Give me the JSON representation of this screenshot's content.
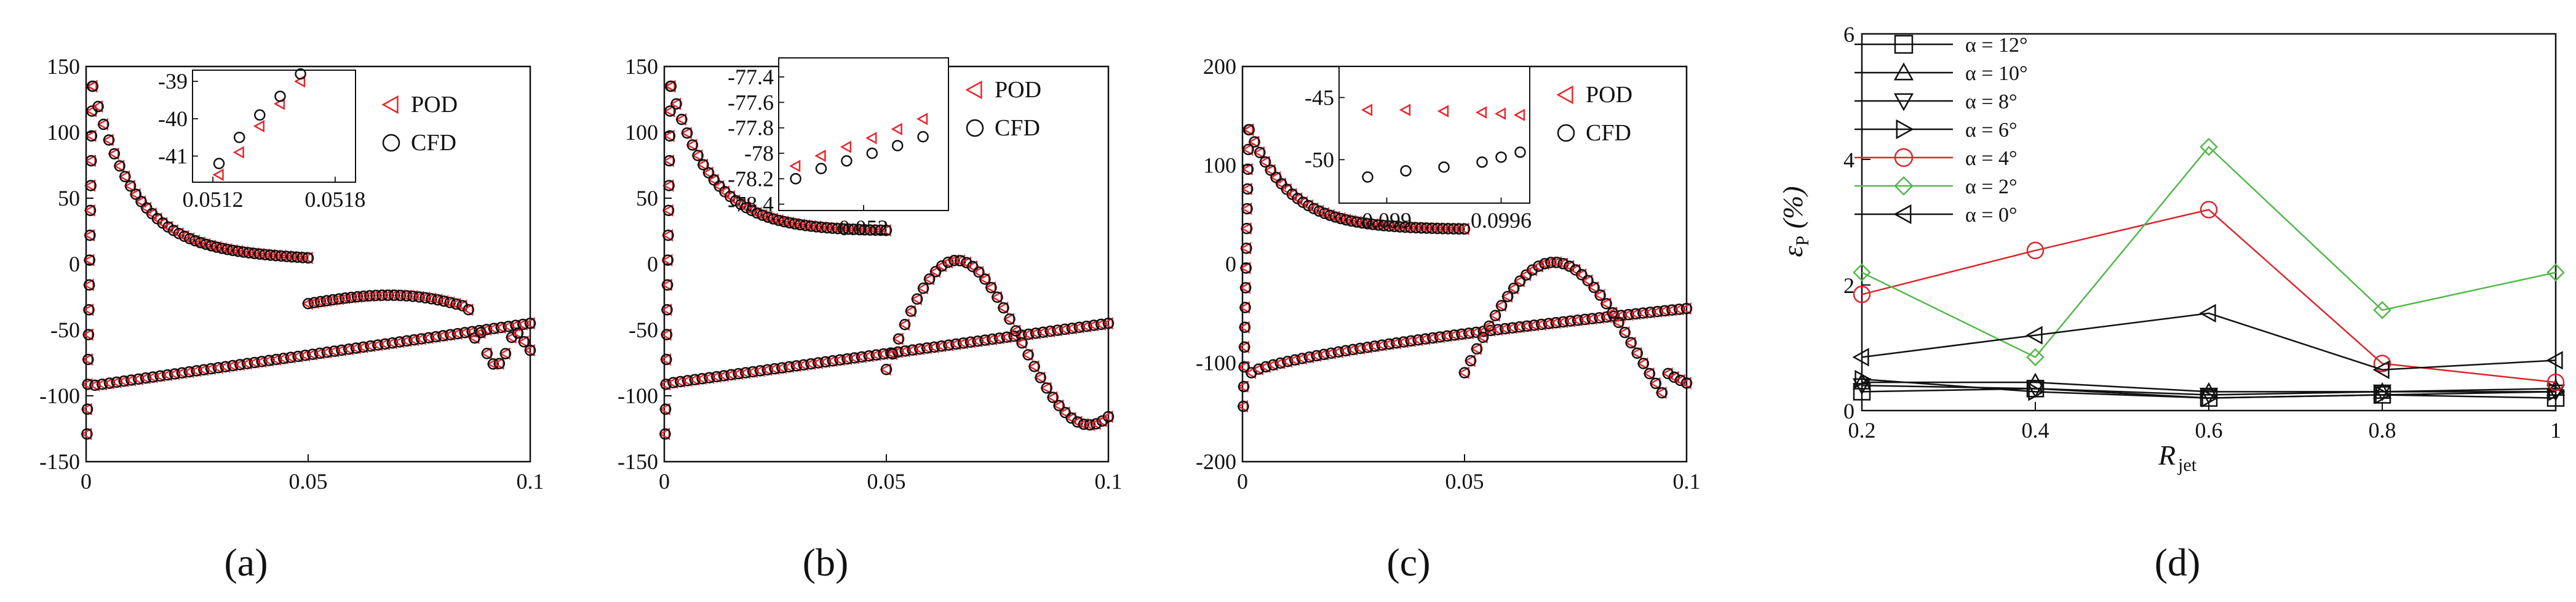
{
  "chart_data": [
    {
      "type": "scatter",
      "panel_label": "(a)",
      "xlim": [
        0,
        0.1
      ],
      "ylim": [
        -150,
        150
      ],
      "xticks": [
        "0",
        "0.05",
        "0.1"
      ],
      "yticks": [
        "150",
        "100",
        "50",
        "0",
        "-50",
        "-100",
        "-150"
      ],
      "legend": [
        "POD",
        "CFD"
      ],
      "series": [
        {
          "name": "POD",
          "marker": "triangle-left",
          "color": "#e8262c"
        },
        {
          "name": "CFD",
          "marker": "circle",
          "color": "#111111"
        }
      ],
      "inset": {
        "xlim": [
          0.0511,
          0.0519
        ],
        "ylim": [
          -41.7,
          -38.7
        ],
        "xticks": [
          "0.0512",
          "0.0518"
        ],
        "yticks": [
          "-39",
          "-40",
          "-41"
        ],
        "pod": {
          "x": [
            0.05123,
            0.05133,
            0.05143,
            0.05153,
            0.05163
          ],
          "y": [
            -41.5,
            -40.9,
            -40.2,
            -39.6,
            -39.0
          ]
        },
        "cfd": {
          "x": [
            0.05123,
            0.05133,
            0.05143,
            0.05153,
            0.05163
          ],
          "y": [
            -41.2,
            -40.5,
            -39.9,
            -39.4,
            -38.8
          ]
        }
      }
    },
    {
      "type": "scatter",
      "panel_label": "(b)",
      "xlim": [
        0,
        0.1
      ],
      "ylim": [
        -150,
        150
      ],
      "xticks": [
        "0",
        "0.05",
        "0.1"
      ],
      "yticks": [
        "150",
        "100",
        "50",
        "0",
        "-50",
        "-100",
        "-150"
      ],
      "legend": [
        "POD",
        "CFD"
      ],
      "series": [
        {
          "name": "POD",
          "marker": "triangle-left",
          "color": "#e8262c"
        },
        {
          "name": "CFD",
          "marker": "circle",
          "color": "#111111"
        }
      ],
      "inset": {
        "xlim": [
          0.0515,
          0.0525
        ],
        "ylim": [
          -78.45,
          -77.25
        ],
        "xticks": [
          "0.052"
        ],
        "yticks": [
          "-77.4",
          "-77.6",
          "-77.8",
          "-78",
          "-78.2",
          "-78.4"
        ],
        "pod": {
          "x": [
            0.0516,
            0.05175,
            0.0519,
            0.05205,
            0.0522,
            0.05235
          ],
          "y": [
            -78.1,
            -78.02,
            -77.95,
            -77.88,
            -77.81,
            -77.73
          ]
        },
        "cfd": {
          "x": [
            0.0516,
            0.05175,
            0.0519,
            0.05205,
            0.0522,
            0.05235
          ],
          "y": [
            -78.2,
            -78.12,
            -78.06,
            -78.0,
            -77.94,
            -77.87
          ]
        }
      }
    },
    {
      "type": "scatter",
      "panel_label": "(c)",
      "xlim": [
        0,
        0.1
      ],
      "ylim": [
        -200,
        200
      ],
      "xticks": [
        "0",
        "0.05",
        "0.1"
      ],
      "yticks": [
        "200",
        "100",
        "0",
        "-100",
        "-200"
      ],
      "legend": [
        "POD",
        "CFD"
      ],
      "series": [
        {
          "name": "POD",
          "marker": "triangle-left",
          "color": "#e8262c"
        },
        {
          "name": "CFD",
          "marker": "circle",
          "color": "#111111"
        }
      ],
      "inset": {
        "xlim": [
          0.09875,
          0.09975
        ],
        "ylim": [
          -53.5,
          -42.5
        ],
        "xticks": [
          "0.099",
          "0.0996"
        ],
        "yticks": [
          "-45",
          "-50"
        ],
        "pod": {
          "x": [
            0.0989,
            0.0991,
            0.0993,
            0.0995,
            0.0996,
            0.0997
          ],
          "y": [
            -46.0,
            -46.0,
            -46.1,
            -46.2,
            -46.3,
            -46.4
          ]
        },
        "cfd": {
          "x": [
            0.0989,
            0.0991,
            0.0993,
            0.0995,
            0.0996,
            0.0997
          ],
          "y": [
            -51.4,
            -50.9,
            -50.6,
            -50.2,
            -49.8,
            -49.4
          ]
        }
      }
    },
    {
      "type": "line",
      "panel_label": "(d)",
      "xlabel": "R",
      "xlabel_sub": "jet",
      "ylabel": "ε",
      "ylabel_sub": "P",
      "ylabel_suffix": " (%)",
      "xlim": [
        0.2,
        1
      ],
      "ylim": [
        0,
        6
      ],
      "xticks": [
        "0.2",
        "0.4",
        "0.6",
        "0.8",
        "1"
      ],
      "yticks": [
        "6",
        "4",
        "2",
        "0"
      ],
      "x": [
        0.2,
        0.4,
        0.6,
        0.8,
        1.0
      ],
      "series": [
        {
          "name": "α = 12°",
          "marker": "square",
          "color": "#111111",
          "values": [
            0.3,
            0.35,
            0.2,
            0.25,
            0.2
          ]
        },
        {
          "name": "α = 10°",
          "marker": "triangle-up",
          "color": "#111111",
          "values": [
            0.45,
            0.45,
            0.3,
            0.3,
            0.35
          ]
        },
        {
          "name": "α = 8°",
          "marker": "triangle-down",
          "color": "#111111",
          "values": [
            0.4,
            0.35,
            0.25,
            0.3,
            0.3
          ]
        },
        {
          "name": "α = 6°",
          "marker": "triangle-right",
          "color": "#111111",
          "values": [
            0.5,
            0.3,
            0.2,
            0.25,
            0.3
          ]
        },
        {
          "name": "α = 4°",
          "marker": "circle",
          "color": "#d9262c",
          "values": [
            1.85,
            2.55,
            3.2,
            0.75,
            0.45
          ]
        },
        {
          "name": "α = 2°",
          "marker": "diamond",
          "color": "#52b84a",
          "values": [
            2.2,
            0.85,
            4.2,
            1.6,
            2.2
          ]
        },
        {
          "name": "α = 0°",
          "marker": "triangle-left",
          "color": "#111111",
          "values": [
            0.85,
            1.2,
            1.55,
            0.65,
            0.8
          ]
        }
      ]
    }
  ]
}
